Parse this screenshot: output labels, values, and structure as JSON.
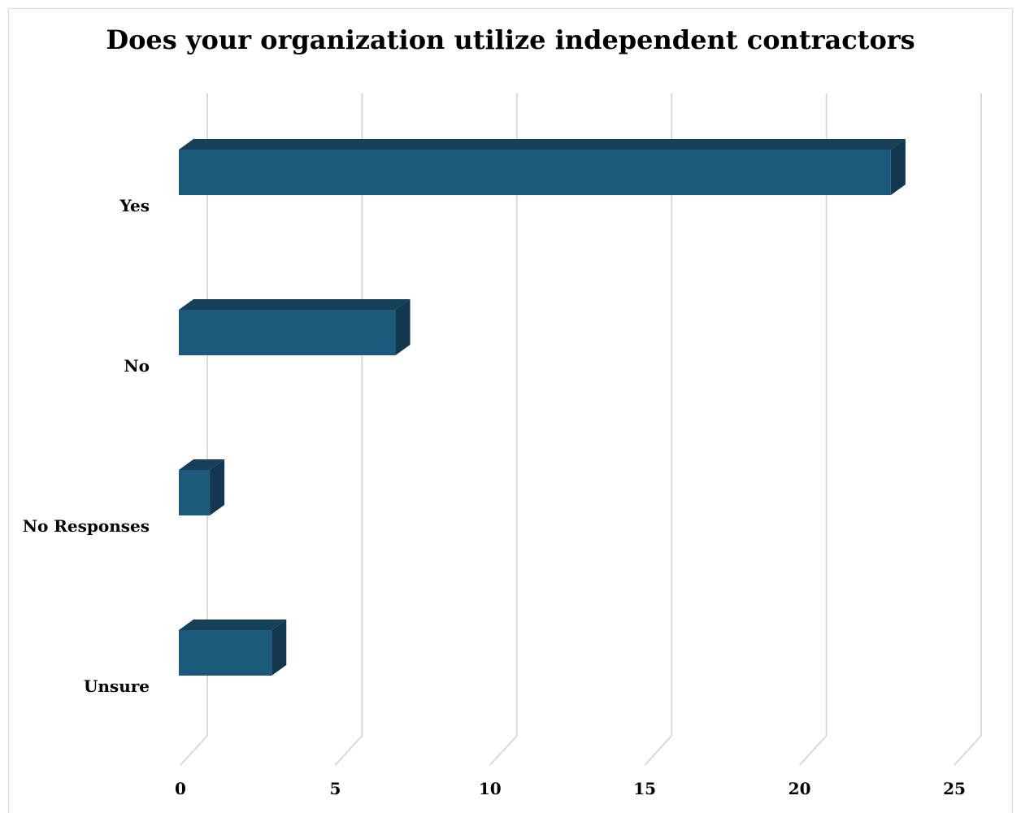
{
  "chart_data": {
    "type": "bar",
    "orientation": "horizontal",
    "style": "3d",
    "title": "Does your organization utilize independent contractors",
    "xlabel": "",
    "ylabel": "",
    "categories": [
      "Yes",
      "No",
      "No Responses",
      "Unsure"
    ],
    "values": [
      23,
      7,
      1,
      3
    ],
    "xlim": [
      0,
      25
    ],
    "x_ticks": [
      "0",
      "5",
      "10",
      "15",
      "20",
      "25"
    ],
    "grid": true,
    "legend": "none",
    "colors": {
      "bar_front": "#1b5a7a",
      "bar_top": "#163f58",
      "bar_side": "#12374e",
      "gridline": "#d9d9d9"
    }
  }
}
